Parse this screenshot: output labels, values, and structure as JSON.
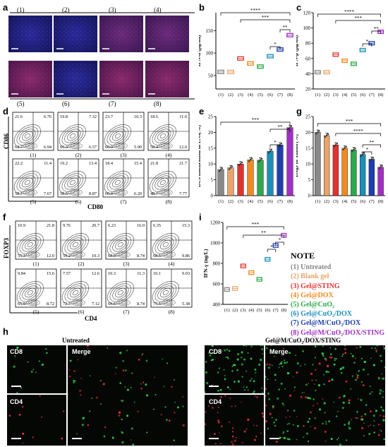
{
  "panels": {
    "a": {
      "letter": "a",
      "top_labels": [
        "(1)",
        "(2)",
        "(3)",
        "(4)"
      ],
      "bottom_labels": [
        "(5)",
        "(6)",
        "(7)",
        "(8)"
      ]
    },
    "b": {
      "letter": "b"
    },
    "c": {
      "letter": "c"
    },
    "d": {
      "letter": "d",
      "ylabel": "CD86",
      "xlabel": "CD80",
      "quadrants": [
        {
          "group": "(1)",
          "ul": "21.6",
          "ur": "6.76",
          "ll": "64.7",
          "lr": "6.94"
        },
        {
          "group": "(2)",
          "ul": "19.8",
          "ur": "7.32",
          "ll": "66.3",
          "lr": "6.57"
        },
        {
          "group": "(3)",
          "ul": "23.7",
          "ur": "10.3",
          "ll": "60.0",
          "lr": "5.90"
        },
        {
          "group": "(4)",
          "ul": "18.6",
          "ur": "11.0",
          "ll": "58.4",
          "lr": "12.0"
        },
        {
          "group": "(5)",
          "ul": "22.2",
          "ur": "11.4",
          "ll": "58.7",
          "lr": "7.67"
        },
        {
          "group": "(6)",
          "ul": "19.2",
          "ur": "13.4",
          "ll": "58.5",
          "lr": "8.87"
        },
        {
          "group": "(7)",
          "ul": "18.4",
          "ur": "15.4",
          "ll": "60.0",
          "lr": "6.20"
        },
        {
          "group": "(8)",
          "ul": "21.8",
          "ur": "21.7",
          "ll": "48.7",
          "lr": "7.77"
        }
      ]
    },
    "e": {
      "letter": "e"
    },
    "f": {
      "letter": "f",
      "ylabel": "FOXP3",
      "xlabel": "CD4",
      "quadrants": [
        {
          "group": "(1)",
          "ul": "10.9",
          "ur": "21.8",
          "ll": "55.3",
          "lr": "12.0"
        },
        {
          "group": "(2)",
          "ul": "9.76",
          "ur": "20.7",
          "ll": "59.2",
          "lr": "10.3"
        },
        {
          "group": "(3)",
          "ul": "6.23",
          "ur": "16.0",
          "ll": "68.9",
          "lr": "8.74"
        },
        {
          "group": "(4)",
          "ul": "6.35",
          "ur": "15.3",
          "ll": "68.5",
          "lr": "9.86"
        },
        {
          "group": "(5)",
          "ul": "9.84",
          "ur": "15.6",
          "ll": "65.9",
          "lr": "8.72"
        },
        {
          "group": "(6)",
          "ul": "7.57",
          "ur": "12.6",
          "ll": "72.7",
          "lr": "7.12"
        },
        {
          "group": "(7)",
          "ul": "10.3",
          "ur": "11.3",
          "ll": "69.6",
          "lr": "8.74"
        },
        {
          "group": "(8)",
          "ul": "10.1",
          "ur": "9.03",
          "ll": "75.5",
          "lr": "5.38"
        }
      ]
    },
    "g": {
      "letter": "g"
    },
    "h": {
      "letter": "h",
      "left_title": "Untreated",
      "right_title": "Gel@M/CuO₂/DOX/STING",
      "labels": {
        "cd8": "CD8",
        "cd4": "CD4",
        "merge": "Merge"
      }
    },
    "i": {
      "letter": "i"
    }
  },
  "note": {
    "title": "NOTE",
    "items": [
      {
        "text": "(1) Untreated",
        "color": "#888888"
      },
      {
        "text": "(2) Blank gel",
        "color": "#E8A46A"
      },
      {
        "text": "(3) Gel@STING",
        "color": "#E0332F"
      },
      {
        "text": "(4) Gel@DOX",
        "color": "#F28A1E"
      },
      {
        "text": "(5) Gel@CuO₂",
        "color": "#2DA84A"
      },
      {
        "text": "(6) Gel@CuO₂/DOX",
        "color": "#1B8FB8"
      },
      {
        "text": "(7) Gel@M/CuO₂/DOX",
        "color": "#1F3FB0"
      },
      {
        "text": "(8) Gel@M/CuO₂/DOX/STING",
        "color": "#A12FC4"
      }
    ]
  },
  "chart_data": [
    {
      "id": "b",
      "type": "box",
      "ylabel": "IFN-α (pg/ml)",
      "categories": [
        "(1)",
        "(2)",
        "(3)",
        "(4)",
        "(5)",
        "(6)",
        "(7)",
        "(8)"
      ],
      "yticks": [
        "50",
        "100",
        "150"
      ],
      "ylim": [
        20,
        190
      ],
      "values": [
        58,
        58,
        88,
        77,
        70,
        93,
        108,
        140
      ],
      "colors": [
        "#888888",
        "#E8A46A",
        "#E0332F",
        "#F28A1E",
        "#2DA84A",
        "#1B8FB8",
        "#1F3FB0",
        "#A12FC4"
      ],
      "significance": [
        "****",
        "***",
        "**",
        "*"
      ]
    },
    {
      "id": "c",
      "type": "box",
      "ylabel": "IFN-β (pg/ml)",
      "categories": [
        "(1)",
        "(2)",
        "(3)",
        "(4)",
        "(5)",
        "(6)",
        "(7)",
        "(8)"
      ],
      "yticks": [
        "20",
        "40",
        "60",
        "80",
        "100",
        "120"
      ],
      "ylim": [
        20,
        120
      ],
      "values": [
        42,
        42,
        65,
        57,
        53,
        71,
        80,
        95
      ],
      "colors": [
        "#888888",
        "#E8A46A",
        "#E0332F",
        "#F28A1E",
        "#2DA84A",
        "#1B8FB8",
        "#1F3FB0",
        "#A12FC4"
      ],
      "significance": [
        "****",
        "***",
        "**",
        "*"
      ]
    },
    {
      "id": "e",
      "type": "bar",
      "ylabel": "DCs maturation in LNs(%)",
      "categories": [
        "(1)",
        "(2)",
        "(3)",
        "(4)",
        "(5)",
        "(6)",
        "(7)",
        "(8)"
      ],
      "yticks": [
        "0",
        "5",
        "10",
        "15",
        "20",
        "25"
      ],
      "ylim": [
        0,
        25
      ],
      "values": [
        8.2,
        8.8,
        10.0,
        11.3,
        11.2,
        14.0,
        16.0,
        21.5
      ],
      "colors": [
        "#888888",
        "#E8A46A",
        "#E0332F",
        "#F28A1E",
        "#2DA84A",
        "#1B8FB8",
        "#1F3FB0",
        "#A12FC4"
      ],
      "significance": [
        "***",
        "**",
        "*"
      ]
    },
    {
      "id": "g",
      "type": "bar",
      "ylabel": "Tregs in Tumor(%)",
      "categories": [
        "(1)",
        "(2)",
        "(3)",
        "(4)",
        "(5)",
        "(6)",
        "(7)",
        "(8)"
      ],
      "yticks": [
        "0",
        "5",
        "10",
        "15",
        "20",
        "25"
      ],
      "ylim": [
        0,
        25
      ],
      "values": [
        20.0,
        19.0,
        16.0,
        15.0,
        14.5,
        13.0,
        11.5,
        9.0
      ],
      "colors": [
        "#888888",
        "#E8A46A",
        "#E0332F",
        "#F28A1E",
        "#2DA84A",
        "#1B8FB8",
        "#1F3FB0",
        "#A12FC4"
      ],
      "significance": [
        "***",
        "****",
        "**",
        "*"
      ]
    },
    {
      "id": "i",
      "type": "box",
      "ylabel": "IFN-γ (ng/L)",
      "categories": [
        "(1)",
        "(2)",
        "(3)",
        "(4)",
        "(5)",
        "(6)",
        "(7)",
        "(8)"
      ],
      "yticks": [
        "400",
        "600",
        "800",
        "1000",
        "1200"
      ],
      "ylim": [
        400,
        1200
      ],
      "values": [
        545,
        555,
        775,
        710,
        645,
        840,
        975,
        1075
      ],
      "colors": [
        "#888888",
        "#E8A46A",
        "#E0332F",
        "#F28A1E",
        "#2DA84A",
        "#1B8FB8",
        "#1F3FB0",
        "#A12FC4"
      ],
      "significance": [
        "***",
        "**",
        "*",
        "*"
      ]
    }
  ]
}
